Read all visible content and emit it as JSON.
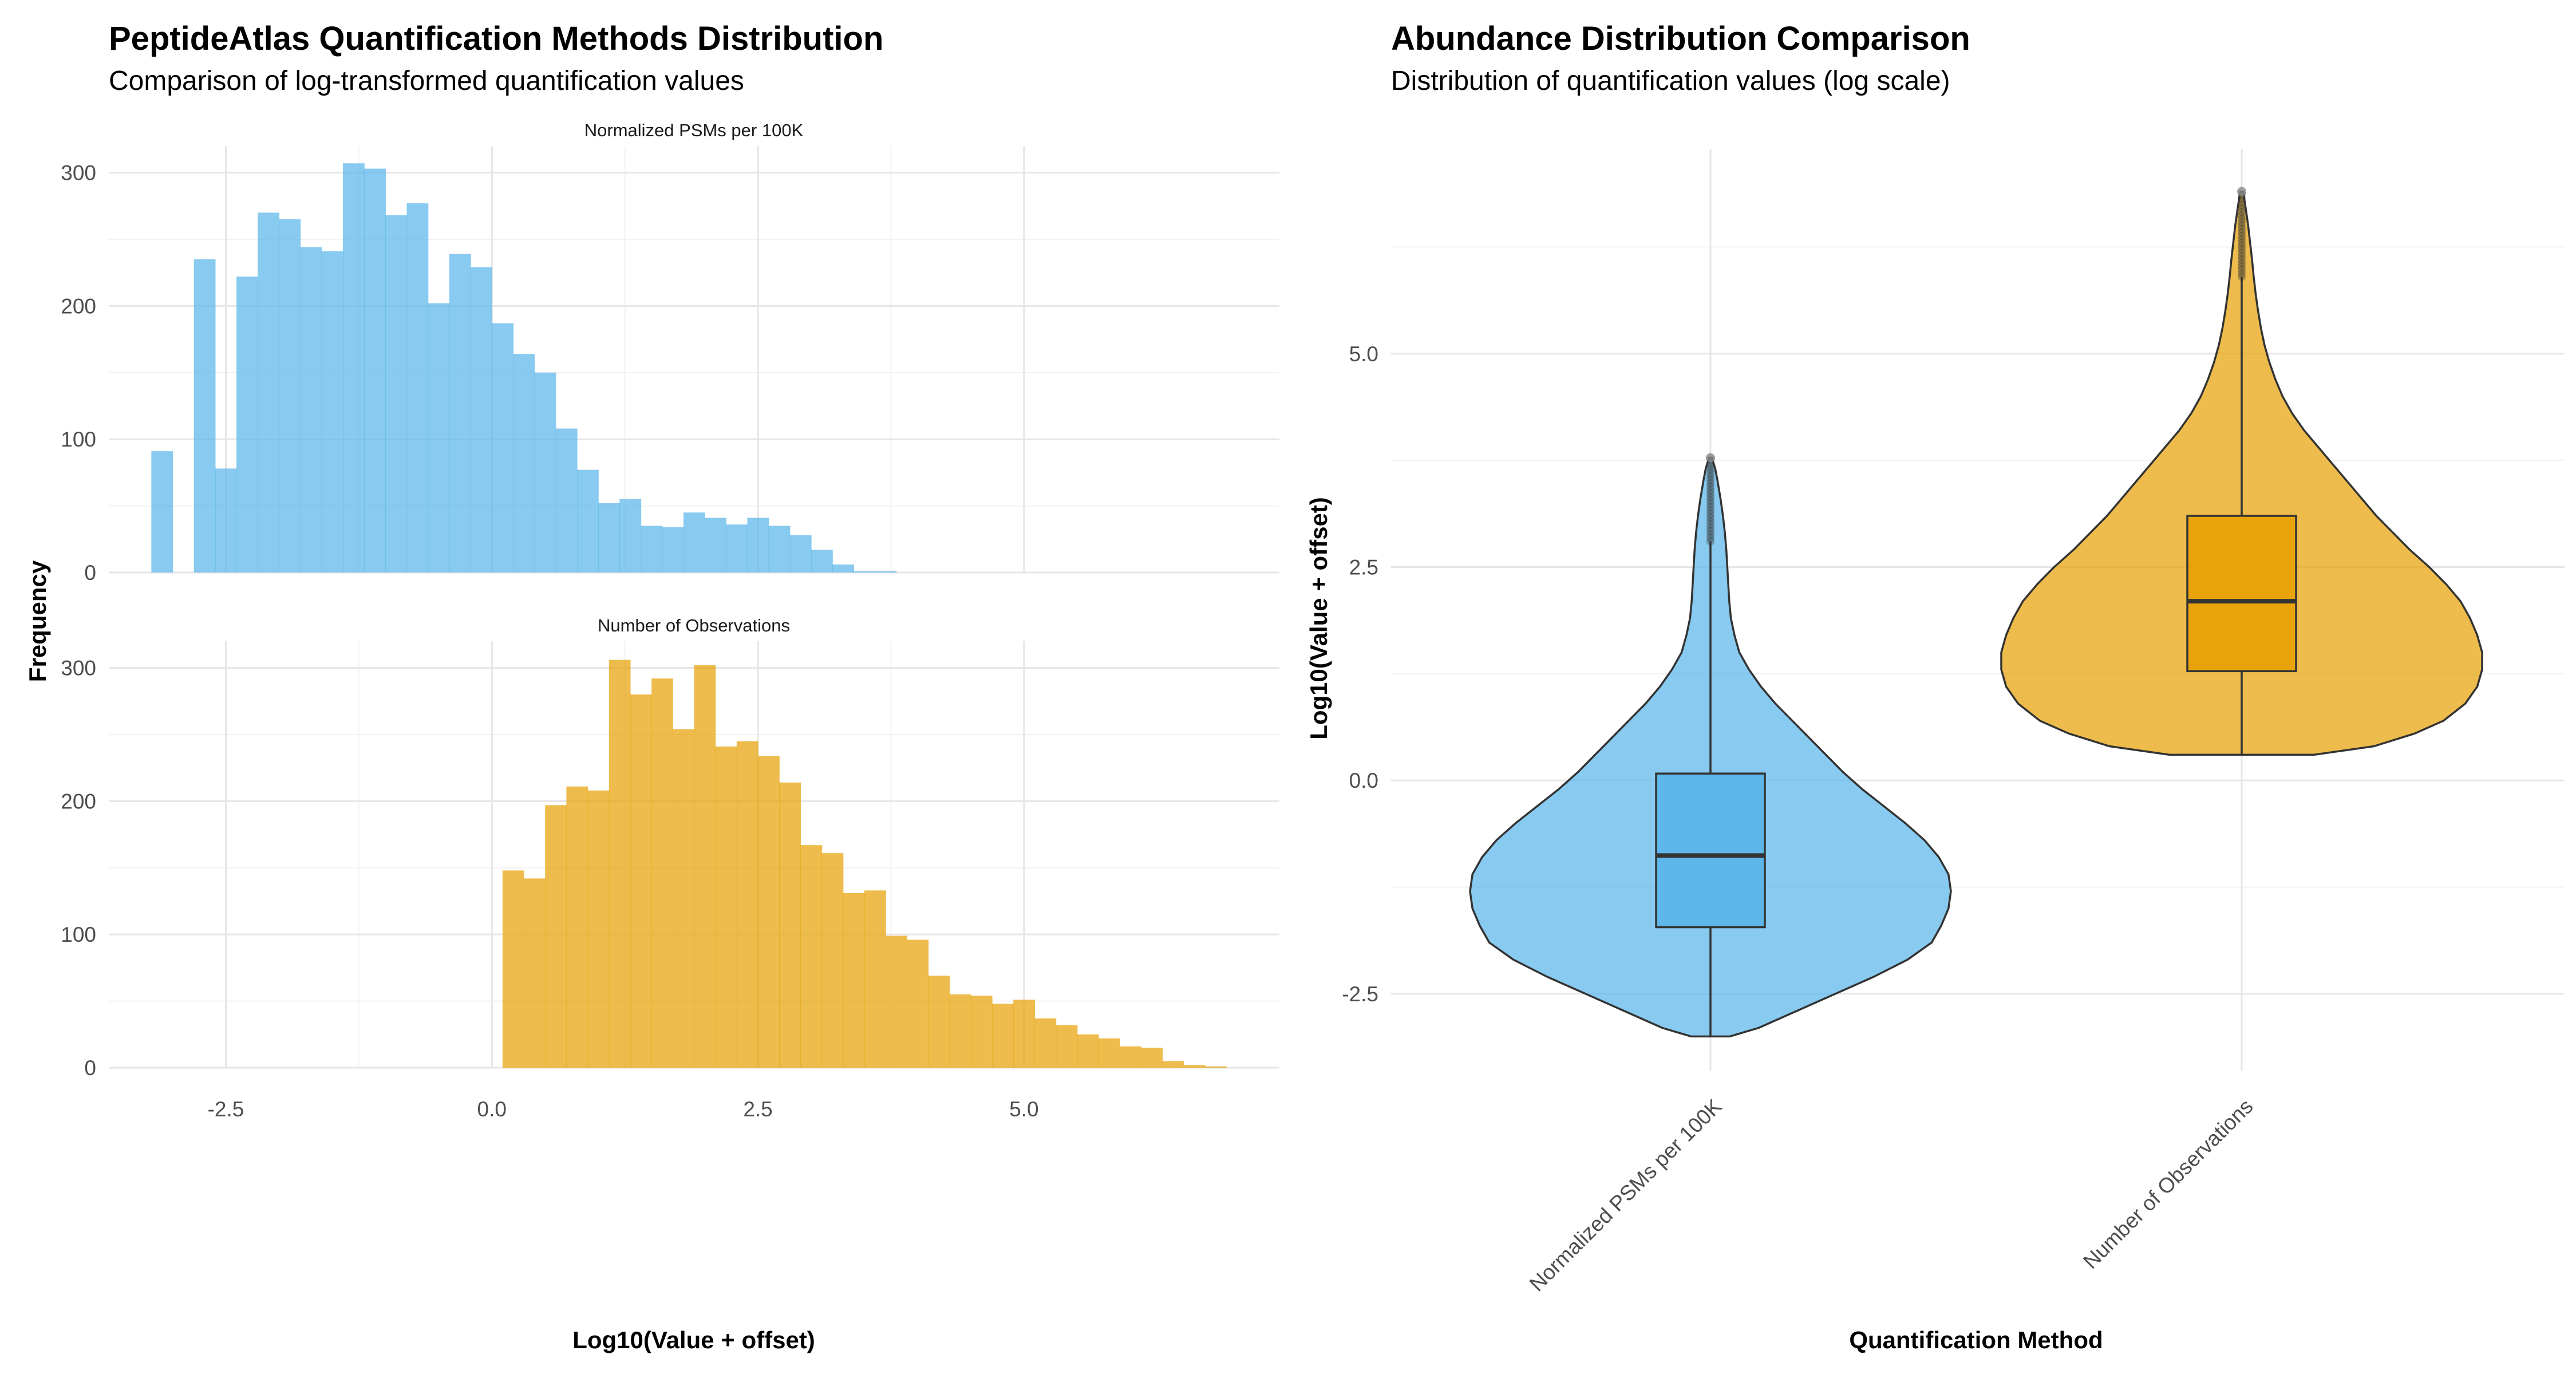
{
  "colors": {
    "psm": "#56B4E9",
    "obs": "#E69F00",
    "outline": "#333333",
    "grid": "#e6e6e6"
  },
  "chart_data": [
    {
      "type": "histogram",
      "title": "PeptideAtlas Quantification Methods Distribution",
      "subtitle": "Comparison of log-transformed quantification values",
      "xlabel": "Log10(Value + offset)",
      "ylabel": "Frequency",
      "xlim": [
        -3.6,
        7.4
      ],
      "x_ticks": [
        "-2.5",
        "0.0",
        "2.5",
        "5.0"
      ],
      "x_tick_values": [
        -2.5,
        0.0,
        2.5,
        5.0
      ],
      "ylim": [
        0,
        320
      ],
      "y_ticks": [
        "0",
        "100",
        "200",
        "300"
      ],
      "y_tick_values": [
        0,
        100,
        200,
        300
      ],
      "bin_width": 0.2,
      "panels": [
        {
          "name": "Normalized PSMs per 100K",
          "color": "#56B4E9",
          "bins": [
            {
              "x": -3.1,
              "count": 91
            },
            {
              "x": -2.7,
              "count": 235
            },
            {
              "x": -2.5,
              "count": 78
            },
            {
              "x": -2.3,
              "count": 222
            },
            {
              "x": -2.1,
              "count": 270
            },
            {
              "x": -1.9,
              "count": 265
            },
            {
              "x": -1.7,
              "count": 244
            },
            {
              "x": -1.5,
              "count": 241
            },
            {
              "x": -1.3,
              "count": 307
            },
            {
              "x": -1.1,
              "count": 303
            },
            {
              "x": -0.9,
              "count": 268
            },
            {
              "x": -0.7,
              "count": 277
            },
            {
              "x": -0.5,
              "count": 202
            },
            {
              "x": -0.3,
              "count": 239
            },
            {
              "x": -0.1,
              "count": 229
            },
            {
              "x": 0.1,
              "count": 187
            },
            {
              "x": 0.3,
              "count": 164
            },
            {
              "x": 0.5,
              "count": 150
            },
            {
              "x": 0.7,
              "count": 108
            },
            {
              "x": 0.9,
              "count": 77
            },
            {
              "x": 1.1,
              "count": 52
            },
            {
              "x": 1.3,
              "count": 55
            },
            {
              "x": 1.5,
              "count": 35
            },
            {
              "x": 1.7,
              "count": 34
            },
            {
              "x": 1.9,
              "count": 45
            },
            {
              "x": 2.1,
              "count": 41
            },
            {
              "x": 2.3,
              "count": 36
            },
            {
              "x": 2.5,
              "count": 41
            },
            {
              "x": 2.7,
              "count": 35
            },
            {
              "x": 2.9,
              "count": 28
            },
            {
              "x": 3.1,
              "count": 17
            },
            {
              "x": 3.3,
              "count": 6
            },
            {
              "x": 3.5,
              "count": 1
            },
            {
              "x": 3.7,
              "count": 1
            }
          ]
        },
        {
          "name": "Number of Observations",
          "color": "#E69F00",
          "bins": [
            {
              "x": 0.2,
              "count": 148
            },
            {
              "x": 0.4,
              "count": 142
            },
            {
              "x": 0.6,
              "count": 197
            },
            {
              "x": 0.8,
              "count": 211
            },
            {
              "x": 1.0,
              "count": 208
            },
            {
              "x": 1.2,
              "count": 306
            },
            {
              "x": 1.4,
              "count": 280
            },
            {
              "x": 1.6,
              "count": 292
            },
            {
              "x": 1.8,
              "count": 254
            },
            {
              "x": 2.0,
              "count": 302
            },
            {
              "x": 2.2,
              "count": 241
            },
            {
              "x": 2.4,
              "count": 245
            },
            {
              "x": 2.6,
              "count": 234
            },
            {
              "x": 2.8,
              "count": 214
            },
            {
              "x": 3.0,
              "count": 167
            },
            {
              "x": 3.2,
              "count": 161
            },
            {
              "x": 3.4,
              "count": 131
            },
            {
              "x": 3.6,
              "count": 133
            },
            {
              "x": 3.8,
              "count": 99
            },
            {
              "x": 4.0,
              "count": 96
            },
            {
              "x": 4.2,
              "count": 69
            },
            {
              "x": 4.4,
              "count": 55
            },
            {
              "x": 4.6,
              "count": 54
            },
            {
              "x": 4.8,
              "count": 48
            },
            {
              "x": 5.0,
              "count": 51
            },
            {
              "x": 5.2,
              "count": 37
            },
            {
              "x": 5.4,
              "count": 32
            },
            {
              "x": 5.6,
              "count": 25
            },
            {
              "x": 5.8,
              "count": 22
            },
            {
              "x": 6.0,
              "count": 16
            },
            {
              "x": 6.2,
              "count": 15
            },
            {
              "x": 6.4,
              "count": 5
            },
            {
              "x": 6.6,
              "count": 2
            },
            {
              "x": 6.8,
              "count": 1
            }
          ]
        }
      ]
    },
    {
      "type": "violin",
      "title": "Abundance Distribution Comparison",
      "subtitle": "Distribution of quantification values (log scale)",
      "xlabel": "Quantification Method",
      "ylabel": "Log10(Value + offset)",
      "ylim": [
        -3.4,
        7.4
      ],
      "y_ticks": [
        "-2.5",
        "0.0",
        "2.5",
        "5.0"
      ],
      "y_tick_values": [
        -2.5,
        0.0,
        2.5,
        5.0
      ],
      "categories": [
        "Normalized PSMs per 100K",
        "Number of Observations"
      ],
      "series": [
        {
          "name": "Normalized PSMs per 100K",
          "color": "#56B4E9",
          "box": {
            "min": -3.0,
            "q1": -1.72,
            "median": -0.88,
            "q3": 0.08,
            "whisker_high": 2.8,
            "max": 3.78
          },
          "density_profile": [
            [
              -3.0,
              0.08
            ],
            [
              -2.9,
              0.2
            ],
            [
              -2.7,
              0.36
            ],
            [
              -2.5,
              0.52
            ],
            [
              -2.3,
              0.68
            ],
            [
              -2.1,
              0.82
            ],
            [
              -1.9,
              0.92
            ],
            [
              -1.7,
              0.96
            ],
            [
              -1.5,
              0.99
            ],
            [
              -1.3,
              1.0
            ],
            [
              -1.1,
              0.99
            ],
            [
              -0.9,
              0.95
            ],
            [
              -0.7,
              0.89
            ],
            [
              -0.5,
              0.81
            ],
            [
              -0.3,
              0.72
            ],
            [
              -0.1,
              0.63
            ],
            [
              0.1,
              0.55
            ],
            [
              0.3,
              0.48
            ],
            [
              0.5,
              0.41
            ],
            [
              0.7,
              0.34
            ],
            [
              0.9,
              0.27
            ],
            [
              1.1,
              0.21
            ],
            [
              1.3,
              0.16
            ],
            [
              1.5,
              0.12
            ],
            [
              1.7,
              0.1
            ],
            [
              1.9,
              0.085
            ],
            [
              2.1,
              0.078
            ],
            [
              2.3,
              0.074
            ],
            [
              2.5,
              0.07
            ],
            [
              2.7,
              0.066
            ],
            [
              2.9,
              0.06
            ],
            [
              3.1,
              0.052
            ],
            [
              3.3,
              0.042
            ],
            [
              3.5,
              0.03
            ],
            [
              3.65,
              0.02
            ],
            [
              3.78,
              0.006
            ]
          ]
        },
        {
          "name": "Number of Observations",
          "color": "#E69F00",
          "box": {
            "min": 0.3,
            "q1": 1.28,
            "median": 2.1,
            "q3": 3.1,
            "whisker_high": 5.9,
            "max": 6.9
          },
          "density_profile": [
            [
              0.3,
              0.3
            ],
            [
              0.4,
              0.55
            ],
            [
              0.55,
              0.72
            ],
            [
              0.7,
              0.84
            ],
            [
              0.9,
              0.93
            ],
            [
              1.1,
              0.98
            ],
            [
              1.3,
              1.0
            ],
            [
              1.5,
              1.0
            ],
            [
              1.7,
              0.98
            ],
            [
              1.9,
              0.95
            ],
            [
              2.1,
              0.91
            ],
            [
              2.3,
              0.85
            ],
            [
              2.5,
              0.78
            ],
            [
              2.7,
              0.7
            ],
            [
              2.9,
              0.63
            ],
            [
              3.1,
              0.56
            ],
            [
              3.3,
              0.5
            ],
            [
              3.5,
              0.44
            ],
            [
              3.7,
              0.38
            ],
            [
              3.9,
              0.32
            ],
            [
              4.1,
              0.26
            ],
            [
              4.3,
              0.21
            ],
            [
              4.5,
              0.17
            ],
            [
              4.7,
              0.14
            ],
            [
              4.9,
              0.115
            ],
            [
              5.1,
              0.095
            ],
            [
              5.3,
              0.08
            ],
            [
              5.5,
              0.068
            ],
            [
              5.7,
              0.058
            ],
            [
              5.9,
              0.05
            ],
            [
              6.1,
              0.043
            ],
            [
              6.3,
              0.035
            ],
            [
              6.5,
              0.027
            ],
            [
              6.7,
              0.017
            ],
            [
              6.9,
              0.006
            ]
          ]
        }
      ]
    }
  ]
}
